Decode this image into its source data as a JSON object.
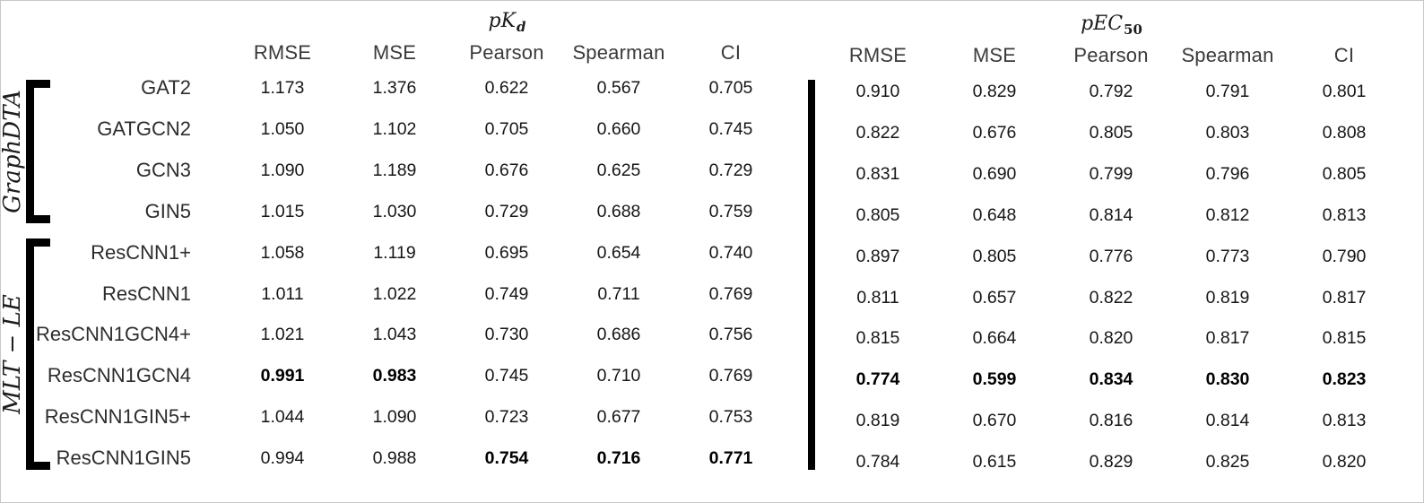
{
  "panels": [
    {
      "title_main": "pK",
      "title_sub": "d",
      "metrics": [
        "RMSE",
        "MSE",
        "Pearson",
        "Spearman",
        "CI"
      ]
    },
    {
      "title_main": "pEC",
      "title_sub": "50",
      "metrics": [
        "RMSE",
        "MSE",
        "Pearson",
        "Spearman",
        "CI"
      ]
    }
  ],
  "groups": [
    {
      "label": "GraphDTA",
      "rows": [
        {
          "model": "GAT2",
          "pkd": [
            "1.173",
            "1.376",
            "0.622",
            "0.567",
            "0.705"
          ],
          "pkd_bold": [
            false,
            false,
            false,
            false,
            false
          ],
          "pec50": [
            "0.910",
            "0.829",
            "0.792",
            "0.791",
            "0.801"
          ],
          "pec50_bold": [
            false,
            false,
            false,
            false,
            false
          ]
        },
        {
          "model": "GATGCN2",
          "pkd": [
            "1.050",
            "1.102",
            "0.705",
            "0.660",
            "0.745"
          ],
          "pkd_bold": [
            false,
            false,
            false,
            false,
            false
          ],
          "pec50": [
            "0.822",
            "0.676",
            "0.805",
            "0.803",
            "0.808"
          ],
          "pec50_bold": [
            false,
            false,
            false,
            false,
            false
          ]
        },
        {
          "model": "GCN3",
          "pkd": [
            "1.090",
            "1.189",
            "0.676",
            "0.625",
            "0.729"
          ],
          "pkd_bold": [
            false,
            false,
            false,
            false,
            false
          ],
          "pec50": [
            "0.831",
            "0.690",
            "0.799",
            "0.796",
            "0.805"
          ],
          "pec50_bold": [
            false,
            false,
            false,
            false,
            false
          ]
        },
        {
          "model": "GIN5",
          "pkd": [
            "1.015",
            "1.030",
            "0.729",
            "0.688",
            "0.759"
          ],
          "pkd_bold": [
            false,
            false,
            false,
            false,
            false
          ],
          "pec50": [
            "0.805",
            "0.648",
            "0.814",
            "0.812",
            "0.813"
          ],
          "pec50_bold": [
            false,
            false,
            false,
            false,
            false
          ]
        }
      ]
    },
    {
      "label": "MLT − LE",
      "rows": [
        {
          "model": "ResCNN1+",
          "pkd": [
            "1.058",
            "1.119",
            "0.695",
            "0.654",
            "0.740"
          ],
          "pkd_bold": [
            false,
            false,
            false,
            false,
            false
          ],
          "pec50": [
            "0.897",
            "0.805",
            "0.776",
            "0.773",
            "0.790"
          ],
          "pec50_bold": [
            false,
            false,
            false,
            false,
            false
          ]
        },
        {
          "model": "ResCNN1",
          "pkd": [
            "1.011",
            "1.022",
            "0.749",
            "0.711",
            "0.769"
          ],
          "pkd_bold": [
            false,
            false,
            false,
            false,
            false
          ],
          "pec50": [
            "0.811",
            "0.657",
            "0.822",
            "0.819",
            "0.817"
          ],
          "pec50_bold": [
            false,
            false,
            false,
            false,
            false
          ]
        },
        {
          "model": "ResCNN1GCN4+",
          "pkd": [
            "1.021",
            "1.043",
            "0.730",
            "0.686",
            "0.756"
          ],
          "pkd_bold": [
            false,
            false,
            false,
            false,
            false
          ],
          "pec50": [
            "0.815",
            "0.664",
            "0.820",
            "0.817",
            "0.815"
          ],
          "pec50_bold": [
            false,
            false,
            false,
            false,
            false
          ]
        },
        {
          "model": "ResCNN1GCN4",
          "pkd": [
            "0.991",
            "0.983",
            "0.745",
            "0.710",
            "0.769"
          ],
          "pkd_bold": [
            true,
            true,
            false,
            false,
            false
          ],
          "pec50": [
            "0.774",
            "0.599",
            "0.834",
            "0.830",
            "0.823"
          ],
          "pec50_bold": [
            true,
            true,
            true,
            true,
            true
          ]
        },
        {
          "model": "ResCNN1GIN5+",
          "pkd": [
            "1.044",
            "1.090",
            "0.723",
            "0.677",
            "0.753"
          ],
          "pkd_bold": [
            false,
            false,
            false,
            false,
            false
          ],
          "pec50": [
            "0.819",
            "0.670",
            "0.816",
            "0.814",
            "0.813"
          ],
          "pec50_bold": [
            false,
            false,
            false,
            false,
            false
          ]
        },
        {
          "model": "ResCNN1GIN5",
          "pkd": [
            "0.994",
            "0.988",
            "0.754",
            "0.716",
            "0.771"
          ],
          "pkd_bold": [
            false,
            false,
            true,
            true,
            true
          ],
          "pec50": [
            "0.784",
            "0.615",
            "0.829",
            "0.825",
            "0.820"
          ],
          "pec50_bold": [
            false,
            false,
            false,
            false,
            false
          ]
        }
      ]
    }
  ]
}
